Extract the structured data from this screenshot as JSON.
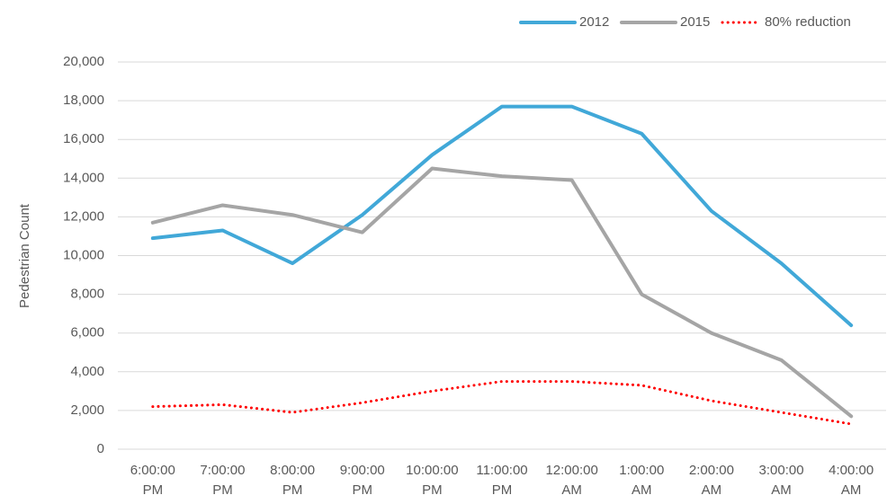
{
  "chart_data": {
    "type": "line",
    "y_label": "Pedestrian Count",
    "categories": [
      "6:00:00 PM",
      "7:00:00 PM",
      "8:00:00 PM",
      "9:00:00 PM",
      "10:00:00 PM",
      "11:00:00 PM",
      "12:00:00 AM",
      "1:00:00 AM",
      "2:00:00 AM",
      "3:00:00 AM",
      "4:00:00 AM"
    ],
    "series": [
      {
        "name": "2012",
        "color": "#41a8d8",
        "style": "solid",
        "values": [
          10900,
          11300,
          9600,
          12100,
          15200,
          17700,
          17700,
          16300,
          12300,
          9600,
          6400
        ]
      },
      {
        "name": "2015",
        "color": "#a5a5a5",
        "style": "solid",
        "values": [
          11700,
          12600,
          12100,
          11200,
          14500,
          14100,
          13900,
          8000,
          6000,
          4600,
          1700
        ]
      },
      {
        "name": "80% reduction",
        "color": "#ff0000",
        "style": "dotted",
        "values": [
          2200,
          2300,
          1900,
          2400,
          3000,
          3500,
          3500,
          3300,
          2500,
          1900,
          1300
        ]
      }
    ],
    "ylim": [
      0,
      20000
    ],
    "yticks": [
      0,
      {
        "value": 2000,
        "label": "2,000"
      },
      {
        "value": 4000,
        "label": "4,000"
      },
      {
        "value": 6000,
        "label": "6,000"
      },
      {
        "value": 8000,
        "label": "8,000"
      },
      {
        "value": 10000,
        "label": "10,000"
      },
      {
        "value": 12000,
        "label": "12,000"
      },
      {
        "value": 14000,
        "label": "14,000"
      },
      {
        "value": 16000,
        "label": "16,000"
      },
      {
        "value": 18000,
        "label": "18,000"
      },
      {
        "value": 20000,
        "label": "20,000"
      }
    ],
    "grid": true,
    "legend": "top-right"
  }
}
